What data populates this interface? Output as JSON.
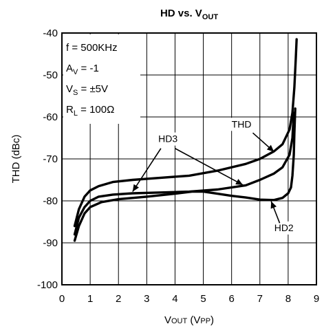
{
  "chart_data": {
    "type": "line",
    "title": {
      "main": "HD vs. V",
      "sub": "OUT"
    },
    "xlabel": {
      "main": "V",
      "sub": "OUT",
      "rest": " (V",
      "sub2": "PP",
      "end": ")"
    },
    "ylabel": "THD (dBc)",
    "xlim": [
      0,
      9
    ],
    "ylim": [
      -100,
      -40
    ],
    "xticks": [
      0,
      1,
      2,
      3,
      4,
      5,
      6,
      7,
      8,
      9
    ],
    "yticks": [
      -40,
      -50,
      -60,
      -70,
      -80,
      -90,
      -100
    ],
    "grid": true,
    "legend_box": [
      {
        "main": "f = 500KHz",
        "sub": "",
        "rest": ""
      },
      {
        "main": "A",
        "sub": "V",
        "rest": " = -1"
      },
      {
        "main": "V",
        "sub": "S",
        "rest": " = ±5V"
      },
      {
        "main": "R",
        "sub": "L",
        "rest": " = 100Ω"
      }
    ],
    "series": [
      {
        "name": "THD",
        "points": [
          [
            0.45,
            -86
          ],
          [
            0.6,
            -82
          ],
          [
            0.8,
            -79
          ],
          [
            1.0,
            -77.5
          ],
          [
            1.3,
            -76.5
          ],
          [
            1.8,
            -75.5
          ],
          [
            2.5,
            -75
          ],
          [
            3.5,
            -74.5
          ],
          [
            4.5,
            -74
          ],
          [
            5.5,
            -72.8
          ],
          [
            6.5,
            -71.2
          ],
          [
            7.0,
            -70
          ],
          [
            7.5,
            -68.2
          ],
          [
            7.8,
            -66.5
          ],
          [
            8.05,
            -63
          ],
          [
            8.15,
            -59
          ],
          [
            8.22,
            -53
          ],
          [
            8.27,
            -46
          ],
          [
            8.3,
            -41.5
          ]
        ]
      },
      {
        "name": "HD3",
        "points": [
          [
            0.45,
            -88
          ],
          [
            0.6,
            -84
          ],
          [
            0.8,
            -81.5
          ],
          [
            1.0,
            -80
          ],
          [
            1.3,
            -79
          ],
          [
            1.8,
            -78.5
          ],
          [
            2.5,
            -78.2
          ],
          [
            3.5,
            -78
          ],
          [
            4.5,
            -77.8
          ],
          [
            5.5,
            -77.3
          ],
          [
            6.5,
            -76.3
          ],
          [
            7.0,
            -75
          ],
          [
            7.5,
            -73.5
          ],
          [
            7.8,
            -72
          ],
          [
            8.05,
            -69
          ],
          [
            8.15,
            -65
          ],
          [
            8.2,
            -59
          ]
        ]
      },
      {
        "name": "HD2",
        "points": [
          [
            0.45,
            -89.5
          ],
          [
            0.6,
            -86
          ],
          [
            0.8,
            -83
          ],
          [
            1.0,
            -81.5
          ],
          [
            1.4,
            -80.3
          ],
          [
            2.0,
            -79.6
          ],
          [
            3.0,
            -79
          ],
          [
            4.0,
            -78.3
          ],
          [
            4.6,
            -77.8
          ],
          [
            5.0,
            -77.8
          ],
          [
            5.5,
            -78.3
          ],
          [
            6.0,
            -78.8
          ],
          [
            6.5,
            -79.2
          ],
          [
            7.0,
            -79.7
          ],
          [
            7.5,
            -79.8
          ],
          [
            7.8,
            -79.3
          ],
          [
            8.0,
            -78.2
          ],
          [
            8.1,
            -76.8
          ],
          [
            8.15,
            -74
          ],
          [
            8.2,
            -69
          ],
          [
            8.22,
            -64
          ],
          [
            8.25,
            -58
          ]
        ]
      }
    ],
    "annotations": [
      {
        "label": "THD",
        "text_at": [
          6.35,
          -62.5
        ],
        "arrow_from": [
          6.75,
          -63.8
        ],
        "arrow_to": [
          7.5,
          -68.3
        ]
      },
      {
        "label": "HD3",
        "text_at": [
          3.75,
          -66
        ],
        "arrow_from": [
          3.5,
          -67.5
        ],
        "arrow_to": [
          2.5,
          -77.8
        ],
        "arrow2_from": [
          4.0,
          -67.5
        ],
        "arrow2_to": [
          6.4,
          -76.2
        ]
      },
      {
        "label": "HD2",
        "text_at": [
          7.85,
          -87.2
        ],
        "arrow_from": [
          7.7,
          -85.3
        ],
        "arrow_to": [
          7.4,
          -80.1
        ]
      }
    ]
  }
}
